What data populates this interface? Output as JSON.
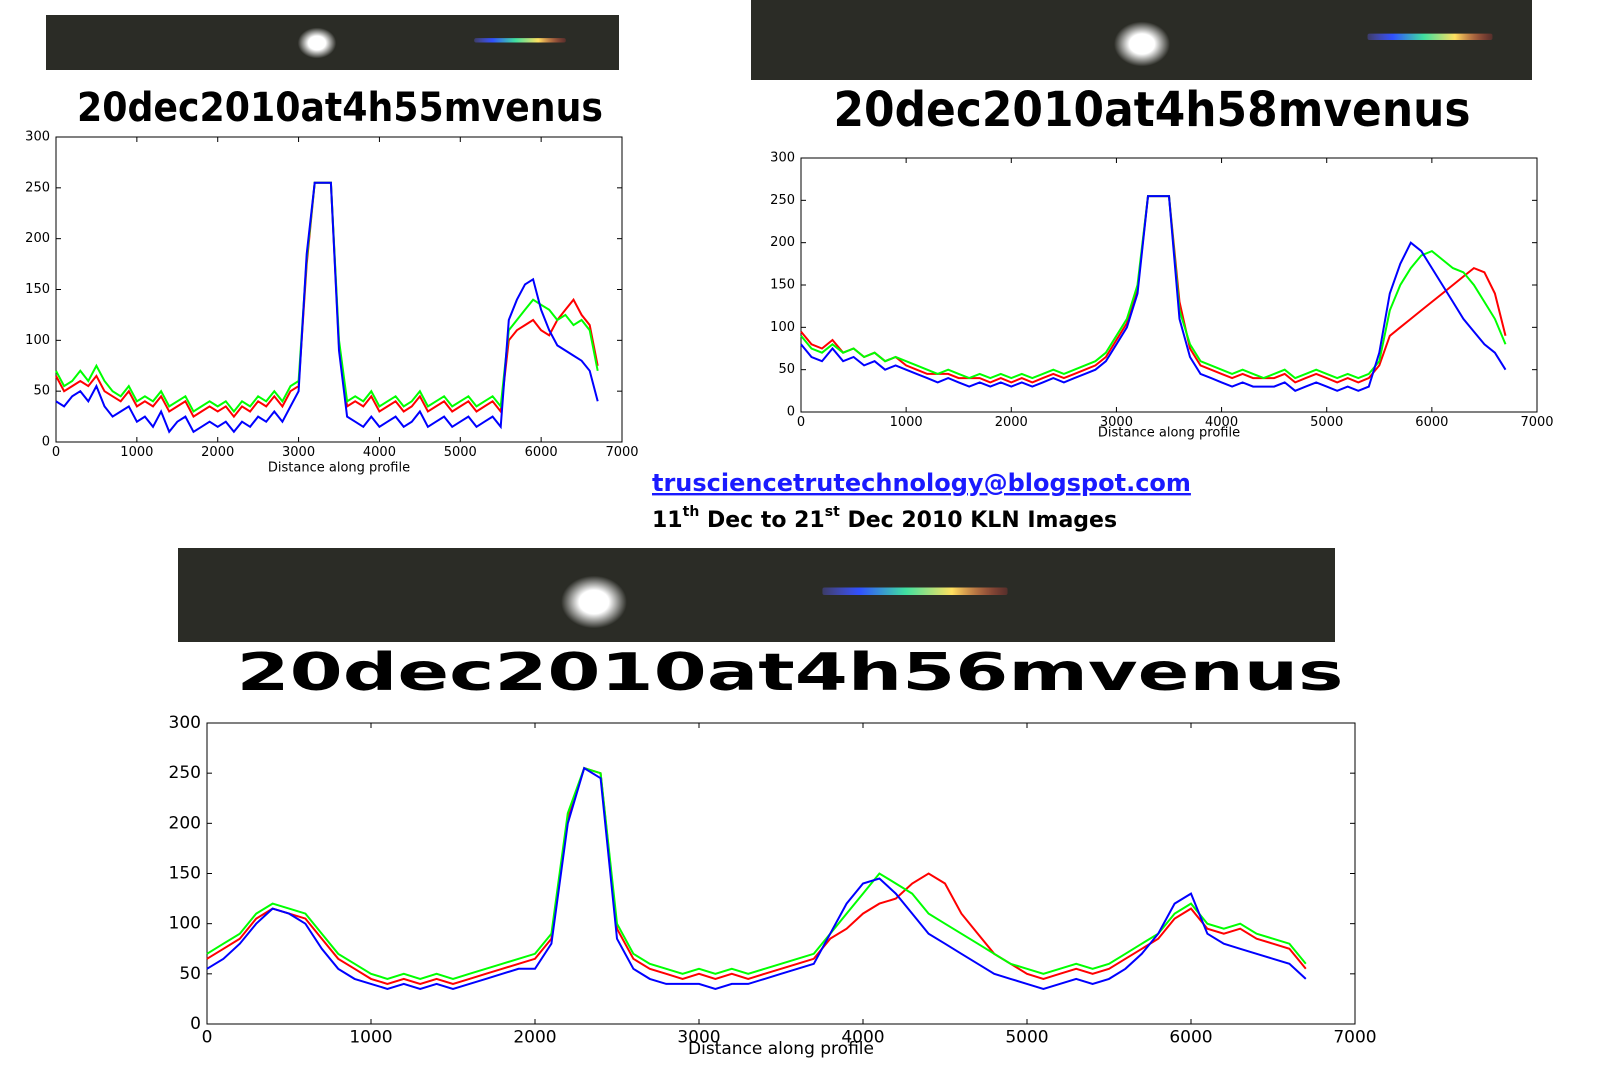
{
  "chart_data": [
    {
      "type": "line",
      "title": "20dec2010at4h55mvenus",
      "xlabel": "Distance along profile",
      "x": [
        0,
        100,
        200,
        300,
        400,
        500,
        600,
        700,
        800,
        900,
        1000,
        1100,
        1200,
        1300,
        1400,
        1500,
        1600,
        1700,
        1800,
        1900,
        2000,
        2100,
        2200,
        2300,
        2400,
        2500,
        2600,
        2700,
        2800,
        2900,
        3000,
        3100,
        3200,
        3300,
        3400,
        3500,
        3600,
        3700,
        3800,
        3900,
        4000,
        4100,
        4200,
        4300,
        4400,
        4500,
        4600,
        4700,
        4800,
        4900,
        5000,
        5100,
        5200,
        5300,
        5400,
        5500,
        5600,
        5700,
        5800,
        5900,
        6000,
        6100,
        6200,
        6300,
        6400,
        6500,
        6600,
        6700
      ],
      "series": [
        {
          "color": "#ff0000",
          "values": [
            65,
            50,
            55,
            60,
            55,
            65,
            50,
            45,
            40,
            50,
            35,
            40,
            35,
            45,
            30,
            35,
            40,
            25,
            30,
            35,
            30,
            35,
            25,
            35,
            30,
            40,
            35,
            45,
            35,
            50,
            55,
            175,
            255,
            255,
            255,
            95,
            35,
            40,
            35,
            45,
            30,
            35,
            40,
            30,
            35,
            45,
            30,
            35,
            40,
            30,
            35,
            40,
            30,
            35,
            40,
            30,
            100,
            110,
            115,
            120,
            110,
            105,
            120,
            130,
            140,
            125,
            115,
            75
          ]
        },
        {
          "color": "#00ff00",
          "values": [
            70,
            55,
            60,
            70,
            60,
            75,
            60,
            50,
            45,
            55,
            40,
            45,
            40,
            50,
            35,
            40,
            45,
            30,
            35,
            40,
            35,
            40,
            30,
            40,
            35,
            45,
            40,
            50,
            40,
            55,
            60,
            180,
            255,
            255,
            255,
            100,
            40,
            45,
            40,
            50,
            35,
            40,
            45,
            35,
            40,
            50,
            35,
            40,
            45,
            35,
            40,
            45,
            35,
            40,
            45,
            35,
            110,
            120,
            130,
            140,
            135,
            130,
            120,
            125,
            115,
            120,
            110,
            70
          ]
        },
        {
          "color": "#0000ff",
          "values": [
            40,
            35,
            45,
            50,
            40,
            55,
            35,
            25,
            30,
            35,
            20,
            25,
            15,
            30,
            10,
            20,
            25,
            10,
            15,
            20,
            15,
            20,
            10,
            20,
            15,
            25,
            20,
            30,
            20,
            35,
            50,
            185,
            255,
            255,
            255,
            90,
            25,
            20,
            15,
            25,
            15,
            20,
            25,
            15,
            20,
            30,
            15,
            20,
            25,
            15,
            20,
            25,
            15,
            20,
            25,
            15,
            120,
            140,
            155,
            160,
            130,
            110,
            95,
            90,
            85,
            80,
            70,
            40
          ]
        }
      ],
      "xlim": [
        0,
        7000
      ],
      "xticks": [
        0,
        1000,
        2000,
        3000,
        4000,
        5000,
        6000,
        7000
      ],
      "ylim": [
        0,
        300
      ],
      "yticks": [
        0,
        50,
        100,
        150,
        200,
        250,
        300
      ]
    },
    {
      "type": "line",
      "title": "20dec2010at4h58mvenus",
      "xlabel": "Distance along profile",
      "x": [
        0,
        100,
        200,
        300,
        400,
        500,
        600,
        700,
        800,
        900,
        1000,
        1100,
        1200,
        1300,
        1400,
        1500,
        1600,
        1700,
        1800,
        1900,
        2000,
        2100,
        2200,
        2300,
        2400,
        2500,
        2600,
        2700,
        2800,
        2900,
        3000,
        3100,
        3200,
        3300,
        3400,
        3500,
        3600,
        3700,
        3800,
        3900,
        4000,
        4100,
        4200,
        4300,
        4400,
        4500,
        4600,
        4700,
        4800,
        4900,
        5000,
        5100,
        5200,
        5300,
        5400,
        5500,
        5600,
        5700,
        5800,
        5900,
        6000,
        6100,
        6200,
        6300,
        6400,
        6500,
        6600,
        6700
      ],
      "series": [
        {
          "color": "#ff0000",
          "values": [
            95,
            80,
            75,
            85,
            70,
            75,
            65,
            70,
            60,
            65,
            55,
            50,
            45,
            45,
            45,
            40,
            40,
            40,
            35,
            40,
            35,
            40,
            35,
            40,
            45,
            40,
            45,
            50,
            55,
            65,
            85,
            105,
            145,
            255,
            255,
            255,
            130,
            75,
            55,
            50,
            45,
            40,
            45,
            40,
            40,
            40,
            45,
            35,
            40,
            45,
            40,
            35,
            40,
            35,
            40,
            55,
            90,
            100,
            110,
            120,
            130,
            140,
            150,
            160,
            170,
            165,
            140,
            90
          ]
        },
        {
          "color": "#00ff00",
          "values": [
            90,
            75,
            70,
            80,
            70,
            75,
            65,
            70,
            60,
            65,
            60,
            55,
            50,
            45,
            50,
            45,
            40,
            45,
            40,
            45,
            40,
            45,
            40,
            45,
            50,
            45,
            50,
            55,
            60,
            70,
            90,
            110,
            150,
            255,
            255,
            255,
            120,
            80,
            60,
            55,
            50,
            45,
            50,
            45,
            40,
            45,
            50,
            40,
            45,
            50,
            45,
            40,
            45,
            40,
            45,
            60,
            120,
            150,
            170,
            185,
            190,
            180,
            170,
            165,
            150,
            130,
            110,
            80
          ]
        },
        {
          "color": "#0000ff",
          "values": [
            80,
            65,
            60,
            75,
            60,
            65,
            55,
            60,
            50,
            55,
            50,
            45,
            40,
            35,
            40,
            35,
            30,
            35,
            30,
            35,
            30,
            35,
            30,
            35,
            40,
            35,
            40,
            45,
            50,
            60,
            80,
            100,
            140,
            255,
            255,
            255,
            110,
            65,
            45,
            40,
            35,
            30,
            35,
            30,
            30,
            30,
            35,
            25,
            30,
            35,
            30,
            25,
            30,
            25,
            30,
            70,
            140,
            175,
            200,
            190,
            170,
            150,
            130,
            110,
            95,
            80,
            70,
            50
          ]
        }
      ],
      "xlim": [
        0,
        7000
      ],
      "xticks": [
        0,
        1000,
        2000,
        3000,
        4000,
        5000,
        6000,
        7000
      ],
      "ylim": [
        0,
        300
      ],
      "yticks": [
        0,
        50,
        100,
        150,
        200,
        250,
        300
      ]
    },
    {
      "type": "line",
      "title": "20dec2010at4h56mvenus",
      "xlabel": "Distance along profile",
      "x": [
        0,
        100,
        200,
        300,
        400,
        500,
        600,
        700,
        800,
        900,
        1000,
        1100,
        1200,
        1300,
        1400,
        1500,
        1600,
        1700,
        1800,
        1900,
        2000,
        2100,
        2200,
        2300,
        2400,
        2500,
        2600,
        2700,
        2800,
        2900,
        3000,
        3100,
        3200,
        3300,
        3400,
        3500,
        3600,
        3700,
        3800,
        3900,
        4000,
        4100,
        4200,
        4300,
        4400,
        4500,
        4600,
        4700,
        4800,
        4900,
        5000,
        5100,
        5200,
        5300,
        5400,
        5500,
        5600,
        5700,
        5800,
        5900,
        6000,
        6100,
        6200,
        6300,
        6400,
        6500,
        6600,
        6700
      ],
      "series": [
        {
          "color": "#ff0000",
          "values": [
            65,
            75,
            85,
            105,
            115,
            110,
            105,
            85,
            65,
            55,
            45,
            40,
            45,
            40,
            45,
            40,
            45,
            50,
            55,
            60,
            65,
            85,
            205,
            255,
            250,
            95,
            65,
            55,
            50,
            45,
            50,
            45,
            50,
            45,
            50,
            55,
            60,
            65,
            85,
            95,
            110,
            120,
            125,
            140,
            150,
            140,
            110,
            90,
            70,
            60,
            50,
            45,
            50,
            55,
            50,
            55,
            65,
            75,
            85,
            105,
            115,
            95,
            90,
            95,
            85,
            80,
            75,
            55
          ]
        },
        {
          "color": "#00ff00",
          "values": [
            70,
            80,
            90,
            110,
            120,
            115,
            110,
            90,
            70,
            60,
            50,
            45,
            50,
            45,
            50,
            45,
            50,
            55,
            60,
            65,
            70,
            90,
            210,
            255,
            250,
            100,
            70,
            60,
            55,
            50,
            55,
            50,
            55,
            50,
            55,
            60,
            65,
            70,
            90,
            110,
            130,
            150,
            140,
            130,
            110,
            100,
            90,
            80,
            70,
            60,
            55,
            50,
            55,
            60,
            55,
            60,
            70,
            80,
            90,
            110,
            120,
            100,
            95,
            100,
            90,
            85,
            80,
            60
          ]
        },
        {
          "color": "#0000ff",
          "values": [
            55,
            65,
            80,
            100,
            115,
            110,
            100,
            75,
            55,
            45,
            40,
            35,
            40,
            35,
            40,
            35,
            40,
            45,
            50,
            55,
            55,
            80,
            200,
            255,
            245,
            85,
            55,
            45,
            40,
            40,
            40,
            35,
            40,
            40,
            45,
            50,
            55,
            60,
            90,
            120,
            140,
            145,
            130,
            110,
            90,
            80,
            70,
            60,
            50,
            45,
            40,
            35,
            40,
            45,
            40,
            45,
            55,
            70,
            90,
            120,
            130,
            90,
            80,
            75,
            70,
            65,
            60,
            45
          ]
        }
      ],
      "xlim": [
        0,
        7000
      ],
      "xticks": [
        0,
        1000,
        2000,
        3000,
        4000,
        5000,
        6000,
        7000
      ],
      "ylim": [
        0,
        300
      ],
      "yticks": [
        0,
        50,
        100,
        150,
        200,
        250,
        300
      ]
    }
  ],
  "link": "trusciencetrutechnology@blogspot.com",
  "caption": [
    {
      "text": "11"
    },
    {
      "text": "th",
      "sup": true
    },
    {
      "text": " Dec to 21"
    },
    {
      "text": "st",
      "sup": true
    },
    {
      "text": " Dec 2010 KLN Images"
    }
  ]
}
